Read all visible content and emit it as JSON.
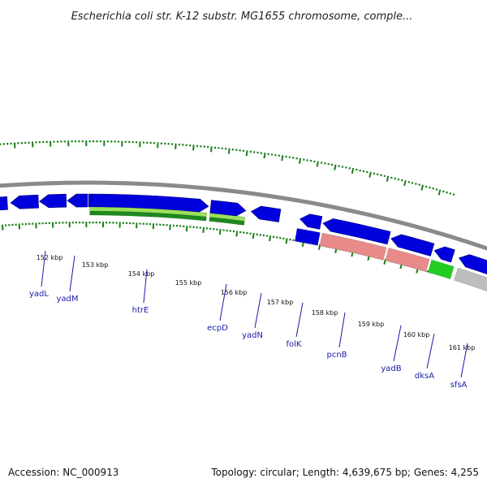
{
  "title": "Escherichia coli str. K-12 substr. MG1655 chromosome, comple...",
  "footer": {
    "accession": "Accession: NC_000913",
    "summary": "Topology: circular; Length: 4,639,675 bp; Genes: 4,255"
  },
  "colors": {
    "ticks": "#1a7f1a",
    "backbone": "#8a8a8a",
    "gene_blue": "#0000dd",
    "gene_light_green": "#9ae05a",
    "gene_dark_green": "#1c8a1c",
    "gene_pink": "#e88a8a",
    "gene_bright_green": "#22cc22",
    "gene_gray": "#bdbdbd",
    "label_text": "#1a1aa8"
  },
  "scale": {
    "labels": [
      "152 kbp",
      "153 kbp",
      "154 kbp",
      "155 kbp",
      "156 kbp",
      "157 kbp",
      "158 kbp",
      "159 kbp",
      "160 kbp",
      "161 kbp"
    ]
  },
  "gene_labels": [
    "yadL",
    "yadM",
    "htrE",
    "ecpD",
    "yadN",
    "folK",
    "pcnB",
    "yadB",
    "dksA",
    "sfsA"
  ]
}
